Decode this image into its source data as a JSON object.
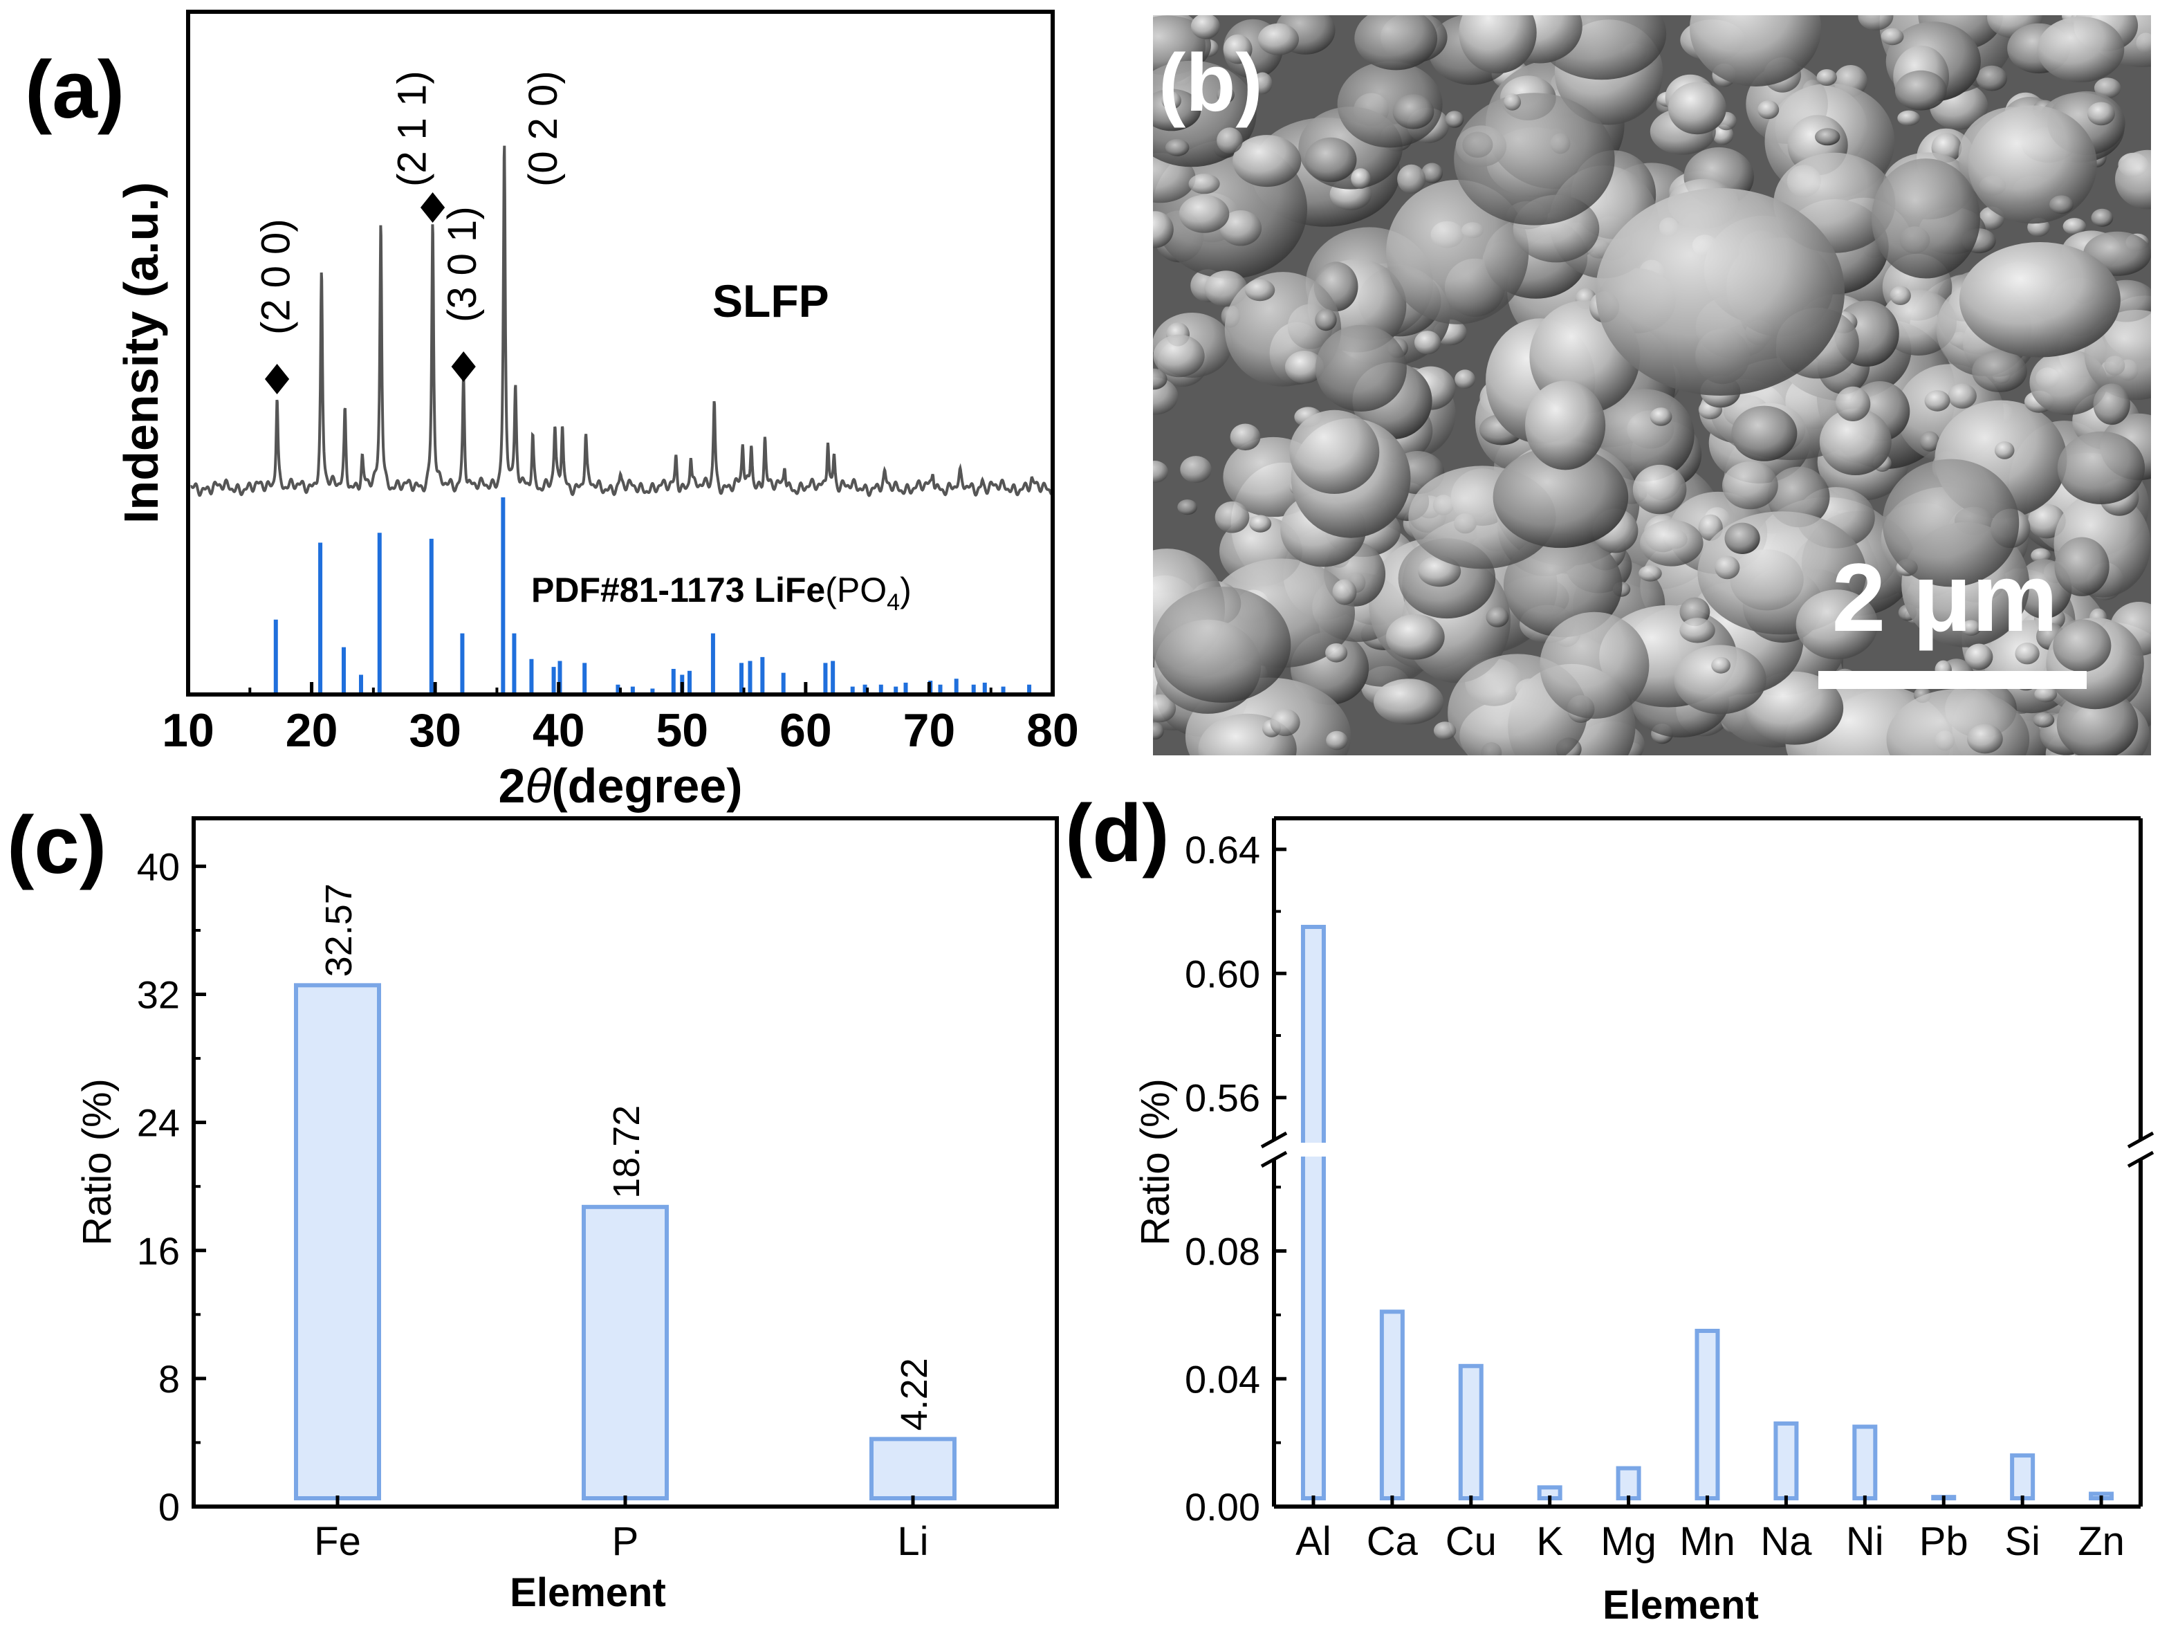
{
  "panels": {
    "a": "(a)",
    "b": "(b)",
    "c": "(c)",
    "d": "(d)"
  },
  "sem": {
    "scale_bar_label": "2 μm",
    "scale_bar_value_um": 2
  },
  "colors": {
    "xrd_sample": "#555555",
    "xrd_reference": "#1f6fdc",
    "bar_fill": "#dbe8fb",
    "bar_edge": "#7aa6e6",
    "axis": "#000000"
  },
  "chart_data": [
    {
      "panel": "a",
      "type": "line",
      "xlabel_prefix": "2",
      "xlabel_theta": "θ",
      "xlabel_suffix": "(degree)",
      "ylabel": "Indensity (a.u.)",
      "xlim": [
        10,
        80
      ],
      "xticks": [
        "10",
        "20",
        "30",
        "40",
        "50",
        "60",
        "70",
        "80"
      ],
      "series": [
        {
          "name": "SLFP",
          "kind": "sample",
          "peaks": [
            {
              "x": 17.2,
              "h": 0.33
            },
            {
              "x": 20.8,
              "h": 0.75
            },
            {
              "x": 22.7,
              "h": 0.27
            },
            {
              "x": 24.1,
              "h": 0.1
            },
            {
              "x": 25.6,
              "h": 0.94
            },
            {
              "x": 29.8,
              "h": 0.94
            },
            {
              "x": 32.3,
              "h": 0.4
            },
            {
              "x": 35.6,
              "h": 1.2
            },
            {
              "x": 36.5,
              "h": 0.33
            },
            {
              "x": 37.9,
              "h": 0.19
            },
            {
              "x": 39.7,
              "h": 0.2
            },
            {
              "x": 40.3,
              "h": 0.22
            },
            {
              "x": 42.2,
              "h": 0.18
            },
            {
              "x": 45.0,
              "h": 0.04
            },
            {
              "x": 49.5,
              "h": 0.11
            },
            {
              "x": 50.7,
              "h": 0.12
            },
            {
              "x": 52.6,
              "h": 0.31
            },
            {
              "x": 54.9,
              "h": 0.15
            },
            {
              "x": 55.6,
              "h": 0.16
            },
            {
              "x": 56.7,
              "h": 0.18
            },
            {
              "x": 58.3,
              "h": 0.08
            },
            {
              "x": 61.8,
              "h": 0.18
            },
            {
              "x": 62.3,
              "h": 0.12
            },
            {
              "x": 66.4,
              "h": 0.04
            },
            {
              "x": 70.3,
              "h": 0.06
            },
            {
              "x": 72.5,
              "h": 0.04
            },
            {
              "x": 74.3,
              "h": 0.03
            },
            {
              "x": 78.3,
              "h": 0.02
            }
          ]
        },
        {
          "name": "PDF#81-1173 LiFe",
          "name_suffix": "(PO",
          "name_sub": "4",
          "name_end": ")",
          "kind": "reference",
          "sticks": [
            {
              "x": 17.1,
              "h": 0.38
            },
            {
              "x": 20.7,
              "h": 0.77
            },
            {
              "x": 22.6,
              "h": 0.24
            },
            {
              "x": 24.0,
              "h": 0.1
            },
            {
              "x": 25.5,
              "h": 0.82
            },
            {
              "x": 29.7,
              "h": 0.79
            },
            {
              "x": 32.2,
              "h": 0.31
            },
            {
              "x": 35.5,
              "h": 1.0
            },
            {
              "x": 36.4,
              "h": 0.31
            },
            {
              "x": 37.8,
              "h": 0.18
            },
            {
              "x": 39.6,
              "h": 0.14
            },
            {
              "x": 40.1,
              "h": 0.17
            },
            {
              "x": 42.1,
              "h": 0.16
            },
            {
              "x": 44.8,
              "h": 0.05
            },
            {
              "x": 46.0,
              "h": 0.04
            },
            {
              "x": 47.6,
              "h": 0.03
            },
            {
              "x": 49.3,
              "h": 0.13
            },
            {
              "x": 50.0,
              "h": 0.1
            },
            {
              "x": 50.6,
              "h": 0.12
            },
            {
              "x": 52.5,
              "h": 0.31
            },
            {
              "x": 54.8,
              "h": 0.16
            },
            {
              "x": 55.5,
              "h": 0.17
            },
            {
              "x": 56.5,
              "h": 0.19
            },
            {
              "x": 58.2,
              "h": 0.11
            },
            {
              "x": 61.6,
              "h": 0.16
            },
            {
              "x": 62.2,
              "h": 0.17
            },
            {
              "x": 63.8,
              "h": 0.04
            },
            {
              "x": 64.8,
              "h": 0.05
            },
            {
              "x": 66.1,
              "h": 0.05
            },
            {
              "x": 67.3,
              "h": 0.04
            },
            {
              "x": 68.1,
              "h": 0.06
            },
            {
              "x": 70.1,
              "h": 0.07
            },
            {
              "x": 70.9,
              "h": 0.05
            },
            {
              "x": 72.2,
              "h": 0.08
            },
            {
              "x": 73.6,
              "h": 0.05
            },
            {
              "x": 74.5,
              "h": 0.06
            },
            {
              "x": 76.0,
              "h": 0.04
            },
            {
              "x": 78.1,
              "h": 0.05
            }
          ]
        }
      ],
      "annotations": [
        {
          "x": 17.2,
          "label": "(2 0 0)"
        },
        {
          "x": 29.8,
          "label": "(2 1 1)"
        },
        {
          "x": 32.3,
          "label": "(3 0 1)"
        },
        {
          "x": 35.6,
          "label": "(0 2 0)"
        }
      ],
      "grid": false,
      "legend": "inline"
    },
    {
      "panel": "c",
      "type": "bar",
      "xlabel": "Element",
      "ylabel": "Ratio (%)",
      "categories": [
        "Fe",
        "P",
        "Li"
      ],
      "values": [
        32.57,
        18.72,
        4.22
      ],
      "data_labels": [
        "32.57",
        "18.72",
        "4.22"
      ],
      "ylim": [
        0,
        43
      ],
      "yticks": [
        "0",
        "8",
        "16",
        "24",
        "32",
        "40"
      ],
      "grid": false
    },
    {
      "panel": "d",
      "type": "bar",
      "xlabel": "Element",
      "ylabel": "Ratio (%)",
      "categories": [
        "Al",
        "Ca",
        "Cu",
        "K",
        "Mg",
        "Mn",
        "Na",
        "Ni",
        "Pb",
        "Si",
        "Zn"
      ],
      "values": [
        0.615,
        0.061,
        0.044,
        0.006,
        0.012,
        0.055,
        0.026,
        0.025,
        0.003,
        0.016,
        0.004
      ],
      "ylim_lower": [
        0,
        0.11
      ],
      "ylim_upper": [
        0.545,
        0.65
      ],
      "axis_break": true,
      "yticks_lower": [
        "0.00",
        "0.04",
        "0.08"
      ],
      "yticks_upper": [
        "0.56",
        "0.60",
        "0.64"
      ],
      "grid": false
    }
  ]
}
